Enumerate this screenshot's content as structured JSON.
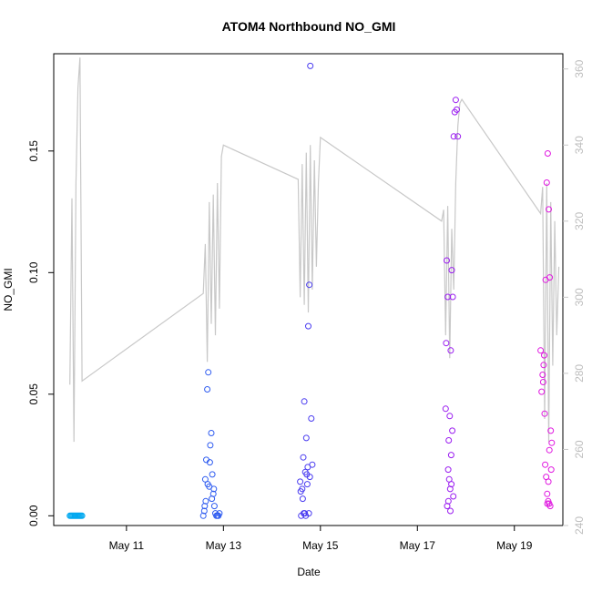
{
  "chart_data": {
    "type": "scatter",
    "title": "ATOM4 Northbound NO_GMI",
    "xlabel": "Date",
    "ylabel": "NO_GMI",
    "xlim": [
      "2016-05-09T12:00",
      "2016-05-20T00:00"
    ],
    "ylim": [
      -0.004,
      0.19
    ],
    "yticks": [
      0.0,
      0.05,
      0.1,
      0.15
    ],
    "ytick_labels": [
      "0.00",
      "0.05",
      "0.10",
      "0.15"
    ],
    "xticks": [
      "2016-05-11",
      "2016-05-13",
      "2016-05-15",
      "2016-05-17",
      "2016-05-19"
    ],
    "xtick_labels": [
      "May 11",
      "May 13",
      "May 15",
      "May 17",
      "May 19"
    ],
    "secondary_axis": {
      "color": "#c8c8c8",
      "ylim": [
        240,
        364
      ],
      "yticks": [
        240,
        260,
        280,
        300,
        320,
        340,
        360
      ],
      "ytick_labels": [
        "240",
        "260",
        "280",
        "300",
        "320",
        "340",
        "360"
      ],
      "line": [
        [
          "2016-05-09T20:00",
          277
        ],
        [
          "2016-05-09T21:00",
          326
        ],
        [
          "2016-05-09T22:00",
          262
        ],
        [
          "2016-05-09T23:00",
          330
        ],
        [
          "2016-05-10T00:00",
          355
        ],
        [
          "2016-05-10T01:00",
          363
        ],
        [
          "2016-05-10T02:00",
          278
        ],
        [
          "2016-05-12T14:00",
          301
        ],
        [
          "2016-05-12T15:00",
          314
        ],
        [
          "2016-05-12T16:00",
          283
        ],
        [
          "2016-05-12T17:00",
          325
        ],
        [
          "2016-05-12T18:00",
          293
        ],
        [
          "2016-05-12T19:00",
          327
        ],
        [
          "2016-05-12T20:00",
          290
        ],
        [
          "2016-05-12T21:00",
          330
        ],
        [
          "2016-05-12T22:00",
          297
        ],
        [
          "2016-05-12T23:00",
          337
        ],
        [
          "2016-05-13T00:00",
          340
        ],
        [
          "2016-05-14T13:00",
          331
        ],
        [
          "2016-05-14T14:00",
          300
        ],
        [
          "2016-05-14T15:00",
          335
        ],
        [
          "2016-05-14T16:00",
          298
        ],
        [
          "2016-05-14T17:00",
          338
        ],
        [
          "2016-05-14T18:00",
          296
        ],
        [
          "2016-05-14T19:00",
          340
        ],
        [
          "2016-05-14T20:00",
          302
        ],
        [
          "2016-05-14T21:00",
          336
        ],
        [
          "2016-05-14T22:00",
          308
        ],
        [
          "2016-05-14T23:00",
          330
        ],
        [
          "2016-05-15T00:00",
          342
        ],
        [
          "2016-05-17T12:00",
          320
        ],
        [
          "2016-05-17T13:00",
          323
        ],
        [
          "2016-05-17T14:00",
          290
        ],
        [
          "2016-05-17T15:00",
          324
        ],
        [
          "2016-05-17T16:00",
          284
        ],
        [
          "2016-05-17T17:00",
          318
        ],
        [
          "2016-05-17T18:00",
          302
        ],
        [
          "2016-05-17T19:00",
          330
        ],
        [
          "2016-05-17T20:00",
          345
        ],
        [
          "2016-05-17T21:00",
          351
        ],
        [
          "2016-05-17T22:00",
          352
        ],
        [
          "2016-05-19T13:00",
          322
        ],
        [
          "2016-05-19T14:00",
          329
        ],
        [
          "2016-05-19T15:00",
          268
        ],
        [
          "2016-05-19T16:00",
          330
        ],
        [
          "2016-05-19T17:00",
          262
        ],
        [
          "2016-05-19T18:00",
          325
        ],
        [
          "2016-05-19T19:00",
          282
        ],
        [
          "2016-05-19T20:00",
          320
        ],
        [
          "2016-05-19T21:00",
          290
        ],
        [
          "2016-05-19T22:00",
          308
        ]
      ]
    },
    "series": [
      {
        "color": "#00a8f0",
        "points": [
          [
            "2016-05-09T20:00",
            0.0
          ],
          [
            "2016-05-09T20:30",
            0.0
          ],
          [
            "2016-05-09T21:00",
            0.0
          ],
          [
            "2016-05-09T21:30",
            0.0
          ],
          [
            "2016-05-09T22:00",
            0.0
          ],
          [
            "2016-05-09T22:30",
            0.0
          ],
          [
            "2016-05-09T23:00",
            0.0
          ],
          [
            "2016-05-09T23:30",
            0.0
          ],
          [
            "2016-05-10T00:00",
            0.0
          ],
          [
            "2016-05-10T00:30",
            0.0
          ],
          [
            "2016-05-10T01:00",
            0.0
          ],
          [
            "2016-05-10T01:30",
            0.0
          ],
          [
            "2016-05-10T02:00",
            0.0
          ]
        ]
      },
      {
        "color": "#2f5cf0",
        "points": [
          [
            "2016-05-12T14:00",
            0.0
          ],
          [
            "2016-05-12T14:30",
            0.002
          ],
          [
            "2016-05-12T15:00",
            0.015
          ],
          [
            "2016-05-12T15:30",
            0.023
          ],
          [
            "2016-05-12T16:00",
            0.052
          ],
          [
            "2016-05-12T16:30",
            0.059
          ],
          [
            "2016-05-12T17:00",
            0.012
          ],
          [
            "2016-05-12T17:30",
            0.029
          ],
          [
            "2016-05-12T18:00",
            0.034
          ],
          [
            "2016-05-12T18:30",
            0.017
          ],
          [
            "2016-05-12T19:00",
            0.009
          ],
          [
            "2016-05-12T19:30",
            0.004
          ],
          [
            "2016-05-12T20:00",
            0.001
          ],
          [
            "2016-05-12T20:30",
            0.0
          ],
          [
            "2016-05-12T21:00",
            0.0
          ],
          [
            "2016-05-12T21:30",
            0.0
          ],
          [
            "2016-05-12T22:00",
            0.001
          ],
          [
            "2016-05-12T15:15",
            0.006
          ],
          [
            "2016-05-12T16:15",
            0.013
          ],
          [
            "2016-05-12T17:15",
            0.022
          ],
          [
            "2016-05-12T18:15",
            0.007
          ],
          [
            "2016-05-12T19:15",
            0.011
          ],
          [
            "2016-05-12T14:45",
            0.004
          ]
        ]
      },
      {
        "color": "#4a3cf0",
        "points": [
          [
            "2016-05-14T14:00",
            0.014
          ],
          [
            "2016-05-14T14:30",
            0.0
          ],
          [
            "2016-05-14T15:00",
            0.011
          ],
          [
            "2016-05-14T15:30",
            0.024
          ],
          [
            "2016-05-14T16:00",
            0.047
          ],
          [
            "2016-05-14T16:30",
            0.018
          ],
          [
            "2016-05-14T17:00",
            0.032
          ],
          [
            "2016-05-14T17:30",
            0.013
          ],
          [
            "2016-05-14T18:00",
            0.078
          ],
          [
            "2016-05-14T18:30",
            0.095
          ],
          [
            "2016-05-14T19:00",
            0.185
          ],
          [
            "2016-05-14T19:30",
            0.04
          ],
          [
            "2016-05-14T20:00",
            0.021
          ],
          [
            "2016-05-14T15:15",
            0.007
          ],
          [
            "2016-05-14T15:45",
            0.001
          ],
          [
            "2016-05-14T16:15",
            0.001
          ],
          [
            "2016-05-14T16:45",
            0.0
          ],
          [
            "2016-05-14T17:15",
            0.017
          ],
          [
            "2016-05-14T17:45",
            0.02
          ],
          [
            "2016-05-14T18:15",
            0.001
          ],
          [
            "2016-05-14T14:15",
            0.01
          ],
          [
            "2016-05-14T18:45",
            0.016
          ]
        ]
      },
      {
        "color": "#9a1cf0",
        "points": [
          [
            "2016-05-17T14:00",
            0.044
          ],
          [
            "2016-05-17T14:15",
            0.071
          ],
          [
            "2016-05-17T14:30",
            0.105
          ],
          [
            "2016-05-17T15:00",
            0.09
          ],
          [
            "2016-05-17T15:30",
            0.031
          ],
          [
            "2016-05-17T16:00",
            0.041
          ],
          [
            "2016-05-17T16:30",
            0.068
          ],
          [
            "2016-05-17T17:00",
            0.101
          ],
          [
            "2016-05-17T17:30",
            0.09
          ],
          [
            "2016-05-17T18:00",
            0.156
          ],
          [
            "2016-05-17T18:30",
            0.166
          ],
          [
            "2016-05-17T19:00",
            0.171
          ],
          [
            "2016-05-17T19:30",
            0.167
          ],
          [
            "2016-05-17T20:00",
            0.156
          ],
          [
            "2016-05-17T15:15",
            0.019
          ],
          [
            "2016-05-17T15:45",
            0.015
          ],
          [
            "2016-05-17T16:15",
            0.011
          ],
          [
            "2016-05-17T16:45",
            0.025
          ],
          [
            "2016-05-17T17:15",
            0.035
          ],
          [
            "2016-05-17T14:45",
            0.004
          ],
          [
            "2016-05-17T17:45",
            0.008
          ],
          [
            "2016-05-17T15:20",
            0.006
          ],
          [
            "2016-05-17T16:20",
            0.002
          ],
          [
            "2016-05-17T16:50",
            0.013
          ]
        ]
      },
      {
        "color": "#e018e0",
        "points": [
          [
            "2016-05-19T13:00",
            0.068
          ],
          [
            "2016-05-19T13:30",
            0.051
          ],
          [
            "2016-05-19T14:00",
            0.058
          ],
          [
            "2016-05-19T14:30",
            0.062
          ],
          [
            "2016-05-19T15:00",
            0.042
          ],
          [
            "2016-05-19T15:30",
            0.097
          ],
          [
            "2016-05-19T16:00",
            0.137
          ],
          [
            "2016-05-19T16:30",
            0.149
          ],
          [
            "2016-05-19T17:00",
            0.126
          ],
          [
            "2016-05-19T17:30",
            0.098
          ],
          [
            "2016-05-19T18:00",
            0.035
          ],
          [
            "2016-05-19T18:30",
            0.03
          ],
          [
            "2016-05-19T14:15",
            0.055
          ],
          [
            "2016-05-19T14:45",
            0.066
          ],
          [
            "2016-05-19T15:15",
            0.021
          ],
          [
            "2016-05-19T15:45",
            0.016
          ],
          [
            "2016-05-19T16:15",
            0.009
          ],
          [
            "2016-05-19T16:45",
            0.006
          ],
          [
            "2016-05-19T17:15",
            0.005
          ],
          [
            "2016-05-19T17:45",
            0.004
          ],
          [
            "2016-05-19T18:15",
            0.019
          ],
          [
            "2016-05-19T16:20",
            0.005
          ],
          [
            "2016-05-19T16:50",
            0.014
          ],
          [
            "2016-05-19T17:20",
            0.027
          ]
        ]
      }
    ]
  }
}
